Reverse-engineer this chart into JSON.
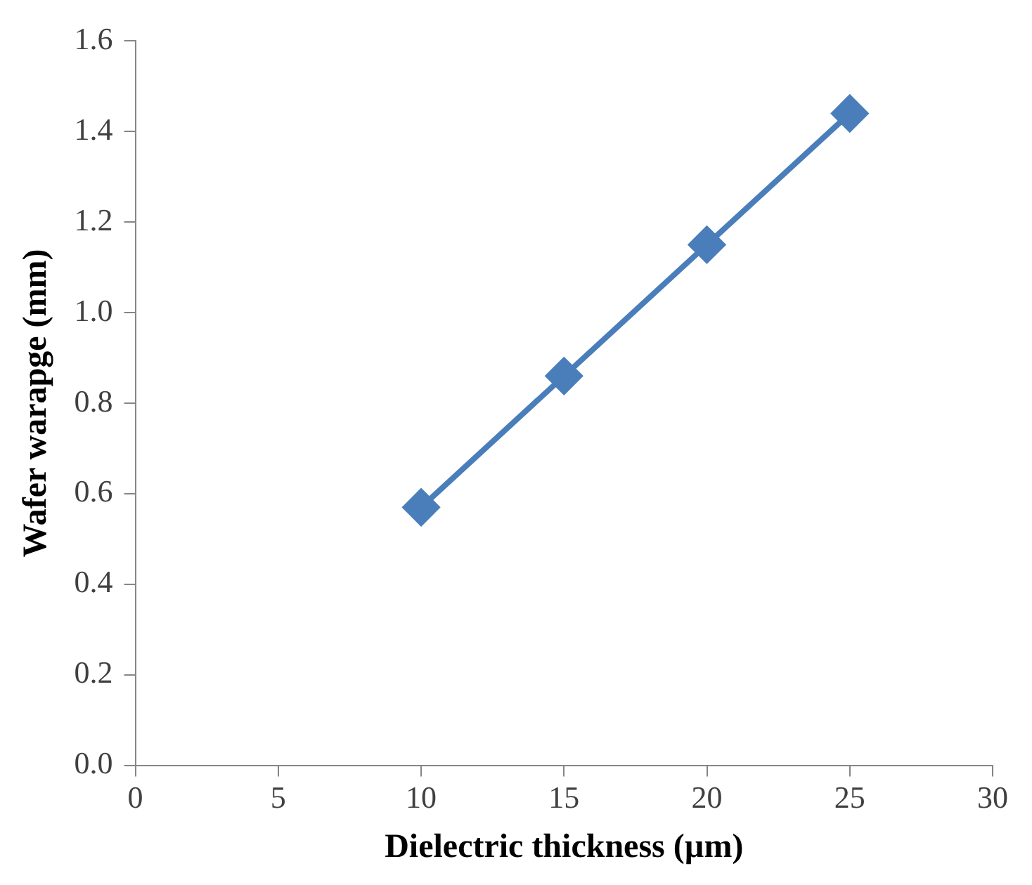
{
  "chart_data": {
    "type": "line",
    "xlabel": "Dielectric thickness (µm)",
    "ylabel": "Wafer warapge (mm)",
    "x": [
      10,
      15,
      20,
      25
    ],
    "series": [
      {
        "color": "#4a7ebb",
        "values": [
          0.57,
          0.86,
          1.15,
          1.44
        ]
      }
    ],
    "xlim": [
      0,
      30
    ],
    "xticks": [
      0,
      5,
      10,
      15,
      20,
      25,
      30
    ],
    "ylim": [
      0,
      1.6
    ],
    "yticks": [
      {
        "value": 0,
        "label": "0.0"
      },
      {
        "value": 0.2,
        "label": "0.2"
      },
      {
        "value": 0.4,
        "label": "0.4"
      },
      {
        "value": 0.6,
        "label": "0.6"
      },
      {
        "value": 0.8,
        "label": "0.8"
      },
      {
        "value": 1.0,
        "label": "1.0"
      },
      {
        "value": 1.2,
        "label": "1.2"
      },
      {
        "value": 1.4,
        "label": "1.4"
      },
      {
        "value": 1.6,
        "label": "1.6"
      }
    ],
    "grid": false,
    "legend": false,
    "marker": "diamond",
    "line_style": "solid"
  }
}
